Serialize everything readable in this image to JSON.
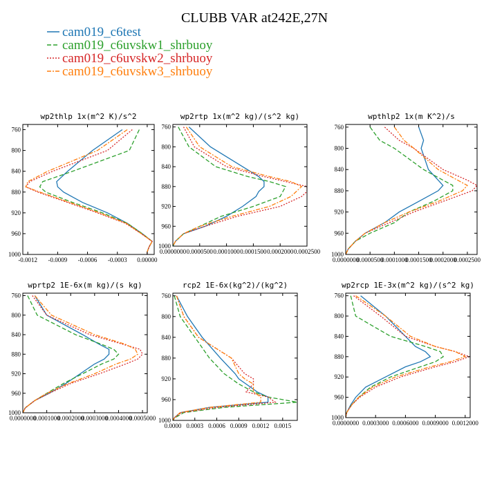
{
  "figure": {
    "title": "CLUBB VAR at242E,27N",
    "legend": [
      {
        "label": "cam019_c6test",
        "color": "#1f77b4",
        "dash": "solid"
      },
      {
        "label": "cam019_c6uvskw1_shrbuoy",
        "color": "#2ca02c",
        "dash": "dashed"
      },
      {
        "label": "cam019_c6uvskw2_shrbuoy",
        "color": "#d62728",
        "dash": "dotted"
      },
      {
        "label": "cam019_c6uvskw3_shrbuoy",
        "color": "#ff7f0e",
        "dash": "dashdot"
      }
    ]
  },
  "chart_data": [
    {
      "type": "line",
      "title": "wp2thlp  1x(m^2 K)/s^2",
      "xlim": [
        -0.00125,
        7e-05
      ],
      "ylim": [
        1000,
        750
      ],
      "xticks": [
        -0.0012,
        -0.0009,
        -0.0006,
        -0.0003,
        0.0
      ],
      "xticklabels": [
        "-0.0012",
        "-0.0009",
        "-0.0006",
        "-0.0003",
        "0.00000"
      ],
      "yticks": [
        760,
        800,
        840,
        880,
        920,
        960,
        1000
      ],
      "y": [
        760,
        800,
        840,
        860,
        870,
        880,
        900,
        920,
        940,
        960,
        975,
        985,
        995,
        1000
      ],
      "series": [
        {
          "name": "cam019_c6test",
          "values": [
            -0.00025,
            -0.00055,
            -0.0008,
            -0.00091,
            -0.0009,
            -0.00084,
            -0.00065,
            -0.0004,
            -0.0002,
            -5e-05,
            5e-05,
            2e-05,
            0.0,
            0.0
          ]
        },
        {
          "name": "cam019_c6uvskw1_shrbuoy",
          "values": [
            -8e-05,
            -0.00018,
            -0.00075,
            -0.00105,
            -0.00108,
            -0.00102,
            -0.00075,
            -0.00045,
            -0.0002,
            -5e-05,
            5e-05,
            2e-05,
            0.0,
            0.0
          ]
        },
        {
          "name": "cam019_c6uvskw2_shrbuoy",
          "values": [
            -0.00015,
            -0.0004,
            -0.00095,
            -0.00118,
            -0.00122,
            -0.0011,
            -0.0008,
            -0.0005,
            -0.00022,
            -6e-05,
            5e-05,
            2e-05,
            0.0,
            0.0
          ]
        },
        {
          "name": "cam019_c6uvskw3_shrbuoy",
          "values": [
            -0.0002,
            -0.0005,
            -0.001,
            -0.0012,
            -0.00122,
            -0.00108,
            -0.00078,
            -0.00048,
            -0.00021,
            -6e-05,
            5e-05,
            2e-05,
            0.0,
            0.0
          ]
        }
      ]
    },
    {
      "type": "line",
      "title": "wp2rtp  1x(m^2 kg)/(s^2 kg)",
      "xlim": [
        0.0,
        0.00025
      ],
      "ylim": [
        1000,
        755
      ],
      "xticks": [
        0.0,
        5e-05,
        0.0001,
        0.00015,
        0.0002,
        0.00025
      ],
      "xticklabels": [
        "0.0000000",
        "0.0000500",
        "0.0001000",
        "0.0001500",
        "0.0002000",
        "0.0002500"
      ],
      "yticks": [
        760,
        800,
        840,
        880,
        920,
        960,
        1000
      ],
      "y": [
        760,
        800,
        840,
        860,
        870,
        880,
        890,
        900,
        920,
        940,
        960,
        975,
        990,
        1000
      ],
      "series": [
        {
          "name": "cam019_c6test",
          "values": [
            3e-05,
            7e-05,
            0.00013,
            0.00016,
            0.00017,
            0.00017,
            0.00016,
            0.000155,
            0.00013,
            0.0001,
            6e-05,
            2e-05,
            5e-06,
            0.0
          ]
        },
        {
          "name": "cam019_c6uvskw1_shrbuoy",
          "values": [
            1e-05,
            3e-05,
            8e-05,
            0.00014,
            0.00018,
            0.00021,
            0.000205,
            0.0002,
            0.00015,
            9e-05,
            5e-05,
            2e-05,
            5e-06,
            0.0
          ]
        },
        {
          "name": "cam019_c6uvskw2_shrbuoy",
          "values": [
            2e-05,
            4e-05,
            0.0001,
            0.00017,
            0.00021,
            0.00025,
            0.00025,
            0.00024,
            0.0002,
            0.00012,
            6e-05,
            2e-05,
            5e-06,
            0.0
          ]
        },
        {
          "name": "cam019_c6uvskw3_shrbuoy",
          "values": [
            2.5e-05,
            5e-05,
            0.00011,
            0.00018,
            0.00022,
            0.00024,
            0.00023,
            0.00022,
            0.00018,
            0.00011,
            5e-05,
            2e-05,
            5e-06,
            0.0
          ]
        }
      ]
    },
    {
      "type": "line",
      "title": "wpthlp2  1x(m K^2)/s",
      "xlim": [
        0.0,
        0.00027
      ],
      "ylim": [
        1000,
        755
      ],
      "xticks": [
        0.0,
        5e-05,
        0.0001,
        0.00015,
        0.0002,
        0.00025
      ],
      "xticklabels": [
        "0.0000000",
        "0.0000500",
        "0.0001000",
        "0.0001500",
        "0.0002000",
        "0.0002500"
      ],
      "yticks": [
        760,
        800,
        840,
        880,
        920,
        960,
        1000
      ],
      "y": [
        760,
        785,
        800,
        840,
        860,
        870,
        880,
        900,
        920,
        940,
        960,
        975,
        990,
        1000
      ],
      "series": [
        {
          "name": "cam019_c6test",
          "values": [
            0.00015,
            0.00016,
            0.000155,
            0.00017,
            0.00019,
            0.0002,
            0.00019,
            0.00015,
            0.00011,
            8e-05,
            4e-05,
            2e-05,
            5e-06,
            0.0
          ]
        },
        {
          "name": "cam019_c6uvskw1_shrbuoy",
          "values": [
            5e-05,
            7e-05,
            0.0001,
            0.00016,
            0.0002,
            0.00022,
            0.00022,
            0.00018,
            0.00013,
            0.0001,
            5e-05,
            2e-05,
            5e-06,
            0.0
          ]
        },
        {
          "name": "cam019_c6uvskw2_shrbuoy",
          "values": [
            8e-05,
            0.00011,
            0.00014,
            0.0002,
            0.00025,
            0.00027,
            0.00026,
            0.0002,
            0.00014,
            9e-05,
            4e-05,
            2e-05,
            5e-06,
            0.0
          ]
        },
        {
          "name": "cam019_c6uvskw3_shrbuoy",
          "values": [
            0.0001,
            0.00012,
            0.00014,
            0.00019,
            0.00023,
            0.00025,
            0.00024,
            0.00019,
            0.00013,
            8e-05,
            4e-05,
            2e-05,
            5e-06,
            0.0
          ]
        }
      ]
    },
    {
      "type": "line",
      "title": "wprtp2  1E-6x(m kg)/(s kg)",
      "xlim": [
        0.0,
        0.00052
      ],
      "ylim": [
        1000,
        755
      ],
      "xticks": [
        0.0,
        0.0001,
        0.0002,
        0.0003,
        0.0004,
        0.0005
      ],
      "xticklabels": [
        "0.0000000",
        "0.0001000",
        "0.0002000",
        "0.0003000",
        "0.0004000",
        "0.0005000"
      ],
      "yticks": [
        760,
        800,
        840,
        880,
        920,
        960,
        1000
      ],
      "y": [
        760,
        800,
        840,
        860,
        870,
        880,
        890,
        900,
        920,
        940,
        960,
        975,
        990,
        1000
      ],
      "series": [
        {
          "name": "cam019_c6test",
          "values": [
            5e-05,
            0.0001,
            0.00025,
            0.00032,
            0.00036,
            0.00036,
            0.00034,
            0.0003,
            0.00024,
            0.00018,
            0.00011,
            5e-05,
            1e-05,
            0.0
          ]
        },
        {
          "name": "cam019_c6uvskw1_shrbuoy",
          "values": [
            2e-05,
            6e-05,
            0.00022,
            0.00033,
            0.00038,
            0.0004,
            0.00038,
            0.00033,
            0.00025,
            0.00017,
            0.0001,
            5e-05,
            1e-05,
            0.0
          ]
        },
        {
          "name": "cam019_c6uvskw2_shrbuoy",
          "values": [
            4e-05,
            0.0001,
            0.00028,
            0.00042,
            0.00049,
            0.0005,
            0.00048,
            0.00043,
            0.00032,
            0.0002,
            0.00011,
            5e-05,
            1e-05,
            0.0
          ]
        },
        {
          "name": "cam019_c6uvskw3_shrbuoy",
          "values": [
            5e-05,
            0.00012,
            0.0003,
            0.00043,
            0.00047,
            0.00048,
            0.00045,
            0.00039,
            0.0003,
            0.00019,
            0.0001,
            5e-05,
            1e-05,
            0.0
          ]
        }
      ]
    },
    {
      "type": "line",
      "title": "rcp2  1E-6x(kg^2)/(kg^2)",
      "xlim": [
        0.0,
        0.0017
      ],
      "ylim": [
        1000,
        755
      ],
      "xticks": [
        0.0,
        0.0003,
        0.0006,
        0.0009,
        0.0012,
        0.0015
      ],
      "xticklabels": [
        "0.0000",
        "0.0003",
        "0.0006",
        "0.0009",
        "0.0012",
        "0.0015"
      ],
      "yticks": [
        760,
        800,
        840,
        880,
        920,
        960,
        1000
      ],
      "y": [
        760,
        800,
        840,
        880,
        910,
        920,
        930,
        945,
        955,
        965,
        975,
        985,
        995,
        1000
      ],
      "series": [
        {
          "name": "cam019_c6test",
          "values": [
            5e-05,
            0.0002,
            0.0004,
            0.00065,
            0.00085,
            0.0009,
            0.001,
            0.00115,
            0.0013,
            0.0013,
            0.0005,
            0.0001,
            2e-05,
            0.0
          ]
        },
        {
          "name": "cam019_c6uvskw1_shrbuoy",
          "values": [
            2e-05,
            0.0001,
            0.0003,
            0.0005,
            0.0007,
            0.0008,
            0.0009,
            0.0011,
            0.0013,
            0.0017,
            0.0007,
            0.00015,
            3e-05,
            0.0
          ]
        },
        {
          "name": "cam019_c6uvskw2_shrbuoy",
          "values": [
            5e-05,
            0.00015,
            0.00035,
            0.0008,
            0.00098,
            0.0011,
            0.0011,
            0.001,
            0.0013,
            0.0014,
            0.0006,
            0.00012,
            2e-05,
            0.0
          ]
        },
        {
          "name": "cam019_c6uvskw3_shrbuoy",
          "values": [
            5e-05,
            0.00015,
            0.00035,
            0.0008,
            0.0009,
            0.00098,
            0.0011,
            0.0011,
            0.0012,
            0.0012,
            0.0005,
            0.0001,
            2e-05,
            0.0
          ]
        }
      ]
    },
    {
      "type": "line",
      "title": "wp2rcp  1E-3x(m^2 kg)/(s^2 kg)",
      "xlim": [
        0.0,
        0.00125
      ],
      "ylim": [
        1000,
        755
      ],
      "xticks": [
        0.0,
        0.0003,
        0.0006,
        0.0009,
        0.0012
      ],
      "xticklabels": [
        "0.0000000",
        "0.0003000",
        "0.0006000",
        "0.0009000",
        "0.0012000"
      ],
      "yticks": [
        760,
        800,
        840,
        880,
        920,
        960,
        1000
      ],
      "y": [
        760,
        800,
        840,
        860,
        870,
        880,
        890,
        900,
        920,
        940,
        960,
        975,
        990,
        1000
      ],
      "series": [
        {
          "name": "cam019_c6test",
          "values": [
            0.00015,
            0.0004,
            0.0006,
            0.0007,
            0.0008,
            0.00085,
            0.00075,
            0.0006,
            0.0004,
            0.0002,
            0.0001,
            5e-05,
            1e-05,
            0.0
          ]
        },
        {
          "name": "cam019_c6uvskw1_shrbuoy",
          "values": [
            5e-05,
            0.0001,
            0.00045,
            0.0008,
            0.00095,
            0.00098,
            0.0009,
            0.00075,
            0.00045,
            0.00025,
            0.00013,
            6e-05,
            1e-05,
            0.0
          ]
        },
        {
          "name": "cam019_c6uvskw2_shrbuoy",
          "values": [
            8e-05,
            0.00035,
            0.0006,
            0.0009,
            0.0011,
            0.00124,
            0.0011,
            0.0009,
            0.00055,
            0.0003,
            0.00014,
            6e-05,
            1e-05,
            0.0
          ]
        },
        {
          "name": "cam019_c6uvskw3_shrbuoy",
          "values": [
            0.0001,
            0.0004,
            0.00065,
            0.0009,
            0.0011,
            0.0012,
            0.00105,
            0.00085,
            0.0005,
            0.00027,
            0.00013,
            6e-05,
            1e-05,
            0.0
          ]
        }
      ]
    }
  ]
}
